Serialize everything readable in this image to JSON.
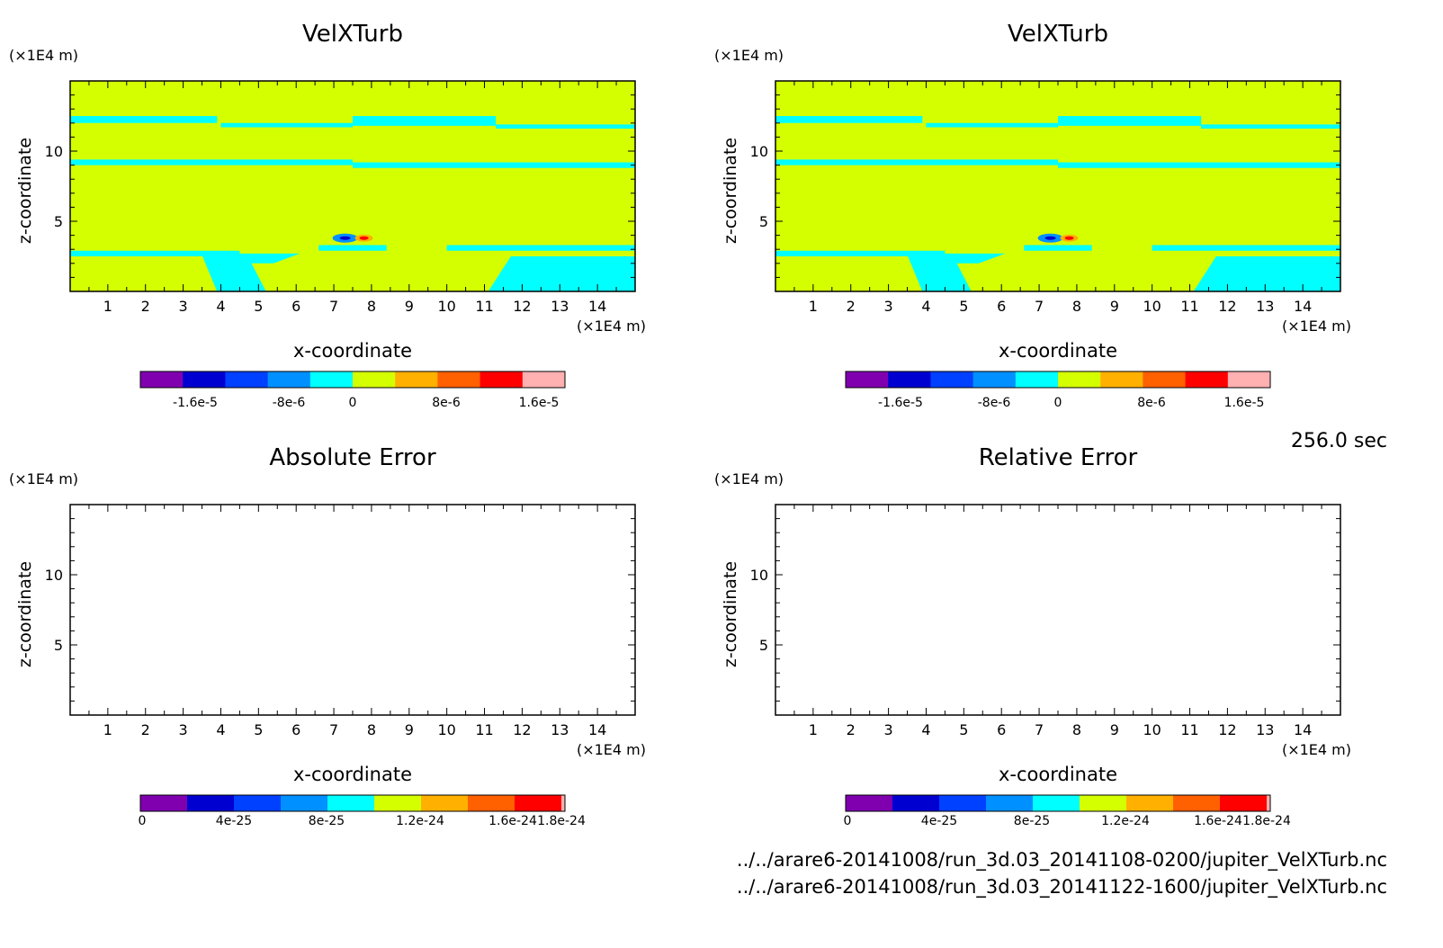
{
  "time_label": "256.0 sec",
  "file_paths": [
    "../../arare6-20141008/run_3d.03_20141108-0200/jupiter_VelXTurb.nc",
    "../../arare6-20141008/run_3d.03_20141122-1600/jupiter_VelXTurb.nc"
  ],
  "colors": {
    "background_field": "#d4ff00",
    "cyan_field": "#00ffff",
    "colorbar": [
      "#8000b0",
      "#0000d0",
      "#0040ff",
      "#0090ff",
      "#00ffff",
      "#d4ff00",
      "#ffb000",
      "#ff6000",
      "#ff0000",
      "#ffb0b0"
    ]
  },
  "chart_data": [
    {
      "type": "heatmap",
      "title": "VelXTurb",
      "xlabel": "x-coordinate",
      "ylabel": "z-coordinate",
      "x_unit": "(×1E4 m)",
      "y_unit": "(×1E4 m)",
      "xlim": [
        0,
        15
      ],
      "ylim": [
        0,
        15
      ],
      "x_ticks": [
        "1",
        "2",
        "3",
        "4",
        "5",
        "6",
        "7",
        "8",
        "9",
        "10",
        "11",
        "12",
        "13",
        "14"
      ],
      "y_ticks": [
        "5",
        "10"
      ],
      "filled": true,
      "colorbar_ticks": [
        "-1.6e-5",
        "-8e-6",
        "0",
        "8e-6",
        "1.6e-5"
      ]
    },
    {
      "type": "heatmap",
      "title": "VelXTurb",
      "xlabel": "x-coordinate",
      "ylabel": "z-coordinate",
      "x_unit": "(×1E4 m)",
      "y_unit": "(×1E4 m)",
      "xlim": [
        0,
        15
      ],
      "ylim": [
        0,
        15
      ],
      "x_ticks": [
        "1",
        "2",
        "3",
        "4",
        "5",
        "6",
        "7",
        "8",
        "9",
        "10",
        "11",
        "12",
        "13",
        "14"
      ],
      "y_ticks": [
        "5",
        "10"
      ],
      "filled": true,
      "colorbar_ticks": [
        "-1.6e-5",
        "-8e-6",
        "0",
        "8e-6",
        "1.6e-5"
      ]
    },
    {
      "type": "heatmap",
      "title": "Absolute Error",
      "xlabel": "x-coordinate",
      "ylabel": "z-coordinate",
      "x_unit": "(×1E4 m)",
      "y_unit": "(×1E4 m)",
      "xlim": [
        0,
        15
      ],
      "ylim": [
        0,
        15
      ],
      "x_ticks": [
        "1",
        "2",
        "3",
        "4",
        "5",
        "6",
        "7",
        "8",
        "9",
        "10",
        "11",
        "12",
        "13",
        "14"
      ],
      "y_ticks": [
        "5",
        "10"
      ],
      "filled": false,
      "colorbar_ticks": [
        "0",
        "4e-25",
        "8e-25",
        "1.2e-24",
        "1.6e-24",
        "1.8e-24"
      ]
    },
    {
      "type": "heatmap",
      "title": "Relative Error",
      "xlabel": "x-coordinate",
      "ylabel": "z-coordinate",
      "x_unit": "(×1E4 m)",
      "y_unit": "(×1E4 m)",
      "xlim": [
        0,
        15
      ],
      "ylim": [
        0,
        15
      ],
      "x_ticks": [
        "1",
        "2",
        "3",
        "4",
        "5",
        "6",
        "7",
        "8",
        "9",
        "10",
        "11",
        "12",
        "13",
        "14"
      ],
      "y_ticks": [
        "5",
        "10"
      ],
      "filled": false,
      "colorbar_ticks": [
        "0",
        "4e-25",
        "8e-25",
        "1.2e-24",
        "1.6e-24",
        "1.8e-24"
      ]
    }
  ]
}
